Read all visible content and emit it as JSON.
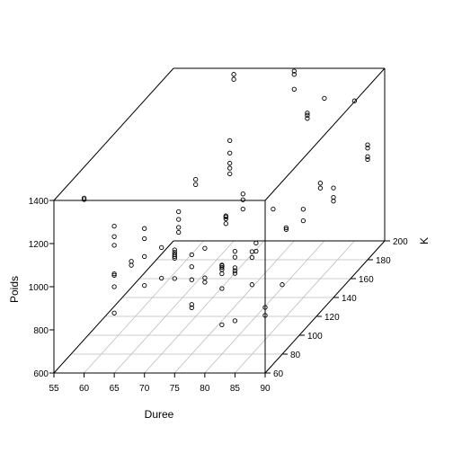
{
  "chart_data": {
    "type": "scatter3d",
    "xlabel": "Duree",
    "ylabel": "K",
    "zlabel": "Poids",
    "xlim": [
      55,
      90
    ],
    "ylim": [
      60,
      200
    ],
    "zlim": [
      600,
      1400
    ],
    "x_ticks": [
      55,
      60,
      65,
      70,
      75,
      80,
      85,
      90
    ],
    "y_ticks": [
      60,
      80,
      100,
      120,
      140,
      160,
      180,
      200
    ],
    "z_ticks": [
      600,
      800,
      1000,
      1200,
      1400
    ],
    "grid": true,
    "points": [
      [
        65,
        200,
        1372
      ],
      [
        65,
        200,
        1349
      ],
      [
        75,
        200,
        1387
      ],
      [
        75,
        200,
        1372
      ],
      [
        75,
        200,
        1303
      ],
      [
        80,
        200,
        1261
      ],
      [
        85,
        200,
        1249
      ],
      [
        70,
        160,
        1240
      ],
      [
        70,
        160,
        1182
      ],
      [
        70,
        160,
        1135
      ],
      [
        70,
        160,
        1112
      ],
      [
        70,
        160,
        1086
      ],
      [
        85,
        160,
        1043
      ],
      [
        85,
        160,
        1020
      ],
      [
        70,
        100,
        1173
      ],
      [
        70,
        100,
        1137
      ],
      [
        70,
        100,
        1100
      ],
      [
        70,
        100,
        1077
      ],
      [
        60,
        60,
        1411
      ],
      [
        60,
        60,
        1404
      ],
      [
        65,
        60,
        1281
      ],
      [
        65,
        60,
        1232
      ],
      [
        65,
        60,
        1192
      ],
      [
        70,
        60,
        1270
      ],
      [
        70,
        60,
        1223
      ],
      [
        70,
        60,
        1140
      ],
      [
        65,
        60,
        1060
      ],
      [
        65,
        60,
        1053
      ],
      [
        65,
        60,
        1000
      ],
      [
        75,
        60,
        1171
      ],
      [
        75,
        60,
        1159
      ],
      [
        75,
        60,
        1149
      ],
      [
        75,
        60,
        1141
      ],
      [
        75,
        60,
        1132
      ],
      [
        85,
        60,
        1164
      ],
      [
        85,
        60,
        1137
      ],
      [
        85,
        60,
        1088
      ],
      [
        85,
        60,
        1074
      ],
      [
        85,
        60,
        1062
      ],
      [
        90,
        60,
        904
      ],
      [
        90,
        60,
        867
      ],
      [
        85,
        60,
        842
      ],
      [
        65,
        60,
        878
      ],
      [
        70,
        60,
        1006
      ],
      [
        75,
        60,
        1038
      ],
      [
        80,
        60,
        1178
      ],
      [
        70,
        120,
        1235
      ],
      [
        70,
        120,
        1211
      ],
      [
        75,
        120,
        1066
      ],
      [
        75,
        120,
        1061
      ],
      [
        75,
        120,
        1052
      ],
      [
        75,
        120,
        1030
      ],
      [
        75,
        80,
        945
      ],
      [
        75,
        80,
        830
      ],
      [
        75,
        80,
        815
      ],
      [
        80,
        80,
        973
      ],
      [
        80,
        80,
        904
      ],
      [
        75,
        140,
        1080
      ],
      [
        75,
        140,
        1053
      ],
      [
        75,
        140,
        1010
      ],
      [
        85,
        140,
        1009
      ],
      [
        85,
        140,
        956
      ],
      [
        90,
        140,
        1108
      ],
      [
        90,
        140,
        1064
      ],
      [
        90,
        140,
        1047
      ],
      [
        80,
        140,
        1010
      ],
      [
        80,
        80,
        736
      ],
      [
        90,
        180,
        1133
      ],
      [
        90,
        180,
        1118
      ],
      [
        90,
        180,
        1078
      ],
      [
        90,
        180,
        1065
      ],
      [
        80,
        80,
        1013
      ],
      [
        80,
        80,
        1010
      ],
      [
        80,
        180,
        1280
      ],
      [
        80,
        180,
        1270
      ],
      [
        80,
        180,
        1255
      ],
      [
        65,
        80,
        1030
      ],
      [
        65,
        80,
        1012
      ],
      [
        70,
        80,
        1094
      ],
      [
        75,
        80,
        1061
      ],
      [
        75,
        80,
        1005
      ],
      [
        70,
        80,
        952
      ],
      [
        80,
        120,
        940
      ],
      [
        80,
        120,
        902
      ],
      [
        85,
        120,
        1011
      ],
      [
        85,
        120,
        1003
      ],
      [
        80,
        60,
        1041
      ],
      [
        80,
        60,
        1021
      ],
      [
        80,
        80,
        1002
      ],
      [
        80,
        80,
        992
      ],
      [
        85,
        80,
        1075
      ],
      [
        85,
        80,
        1048
      ],
      [
        90,
        80,
        922
      ],
      [
        85,
        80,
        922
      ]
    ]
  }
}
